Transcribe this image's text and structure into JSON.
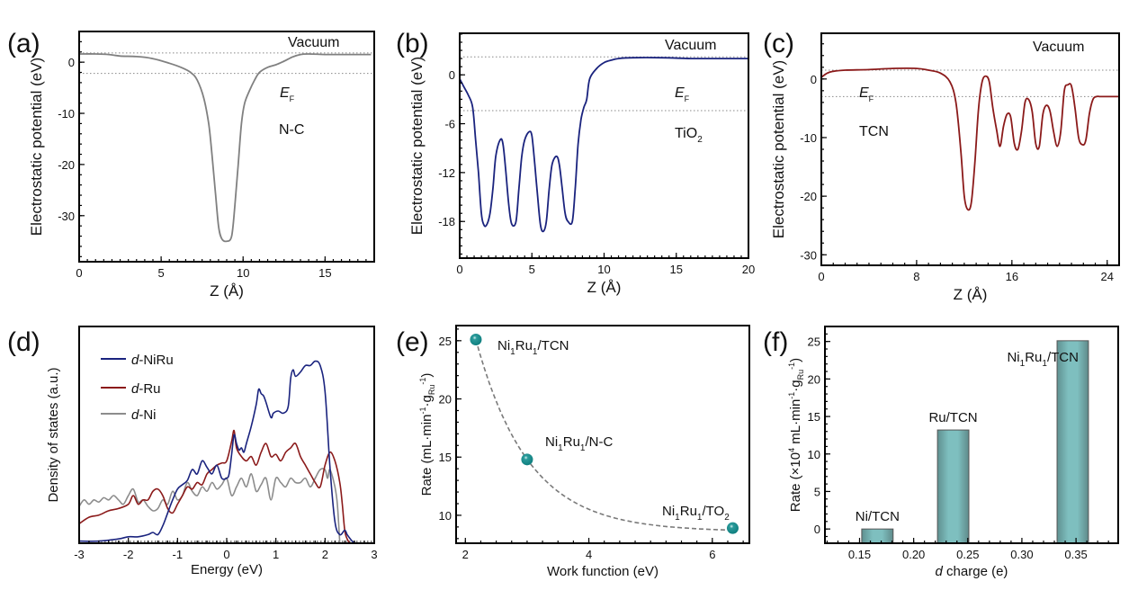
{
  "figure": {
    "panels": [
      "(a)",
      "(b)",
      "(c)",
      "(d)",
      "(e)",
      "(f)"
    ]
  },
  "chart_data": [
    {
      "id": "a",
      "type": "line",
      "panel_label": "(a)",
      "title": "",
      "xlabel": "Z (Å)",
      "ylabel": "Electrostatic potential (eV)",
      "xlim": [
        0,
        18
      ],
      "ylim": [
        -39,
        6
      ],
      "xticks": [
        0,
        5,
        10,
        15
      ],
      "yticks": [
        0,
        -10,
        -20,
        -30
      ],
      "annotations": {
        "vacuum": "Vacuum",
        "ef_main": "E",
        "ef_sub": "F",
        "material": "N-C"
      },
      "reference_lines": {
        "vacuum": 1.8,
        "fermi": -2.2
      },
      "series": [
        {
          "name": "N-C",
          "color": "#808080",
          "x": [
            0,
            1,
            1.8,
            2.5,
            3.5,
            4.5,
            5.5,
            6.2,
            6.8,
            7.2,
            7.6,
            7.9,
            8.1,
            8.3,
            8.5,
            8.7,
            9.0,
            9.3,
            9.5,
            9.7,
            9.9,
            10.1,
            10.4,
            10.7,
            11.0,
            11.5,
            12.0,
            12.5,
            13.0,
            13.5,
            14.0,
            15.0,
            16.0,
            17.0,
            17.8
          ],
          "y": [
            1.6,
            1.6,
            1.5,
            1.2,
            1.1,
            0.7,
            -0.2,
            -1.0,
            -2.0,
            -3.5,
            -7.0,
            -12.0,
            -18.0,
            -25.0,
            -32.0,
            -34.5,
            -35.0,
            -34.0,
            -28.0,
            -20.0,
            -12.0,
            -8.0,
            -5.5,
            -3.5,
            -2.0,
            -1.0,
            -0.5,
            0.2,
            1.0,
            1.5,
            1.6,
            1.5,
            1.5,
            1.5,
            1.5
          ]
        }
      ]
    },
    {
      "id": "b",
      "type": "line",
      "panel_label": "(b)",
      "title": "",
      "xlabel": "Z (Å)",
      "ylabel": "Electrostatic potential (eV)",
      "xlim": [
        0,
        20
      ],
      "ylim": [
        -22.5,
        5.1
      ],
      "xticks": [
        0,
        5,
        10,
        15,
        20
      ],
      "yticks": [
        0,
        -6,
        -12,
        -18
      ],
      "annotations": {
        "vacuum": "Vacuum",
        "ef_main": "E",
        "ef_sub": "F",
        "material_main": "TiO",
        "material_sub": "2"
      },
      "reference_lines": {
        "vacuum": 2.2,
        "fermi": -4.4
      },
      "series": [
        {
          "name": "TiO2",
          "color": "#1a237e",
          "x": [
            0,
            0.3,
            0.6,
            0.9,
            1.1,
            1.3,
            1.5,
            1.7,
            1.9,
            2.1,
            2.3,
            2.5,
            2.8,
            3.0,
            3.2,
            3.4,
            3.6,
            3.9,
            4.1,
            4.3,
            4.5,
            4.8,
            5.0,
            5.2,
            5.4,
            5.6,
            5.8,
            6.0,
            6.2,
            6.4,
            6.7,
            6.9,
            7.1,
            7.3,
            7.5,
            7.8,
            8.0,
            8.2,
            8.4,
            8.6,
            8.8,
            9.0,
            9.5,
            10.0,
            10.5,
            11.0,
            12.0,
            14.0,
            16.0,
            18.0,
            20.0
          ],
          "y": [
            -0.5,
            -1.5,
            -2.5,
            -4.0,
            -8.0,
            -12.0,
            -17.0,
            -18.5,
            -18.3,
            -17.0,
            -14.0,
            -10.0,
            -8.0,
            -8.5,
            -12.0,
            -16.0,
            -18.3,
            -18.0,
            -14.0,
            -10.0,
            -8.0,
            -7.0,
            -7.5,
            -11.0,
            -15.0,
            -18.5,
            -19.2,
            -18.0,
            -14.0,
            -11.0,
            -10.0,
            -11.0,
            -14.0,
            -17.0,
            -18.0,
            -18.0,
            -14.0,
            -8.5,
            -5.5,
            -4.0,
            -3.0,
            -0.5,
            0.8,
            1.5,
            1.8,
            2.0,
            2.1,
            2.1,
            2.0,
            2.0,
            2.0
          ]
        }
      ]
    },
    {
      "id": "c",
      "type": "line",
      "panel_label": "(c)",
      "title": "",
      "xlabel": "Z (Å)",
      "ylabel": "Electrostatic potential (eV)",
      "xlim": [
        0,
        25
      ],
      "ylim": [
        -31.8,
        7.8
      ],
      "xticks": [
        0,
        8,
        16,
        24
      ],
      "yticks": [
        0,
        -10,
        -20,
        -30
      ],
      "annotations": {
        "vacuum": "Vacuum",
        "ef_main": "E",
        "ef_sub": "F",
        "material": "TCN"
      },
      "reference_lines": {
        "vacuum": 1.5,
        "fermi": -3.0
      },
      "series": [
        {
          "name": "TCN",
          "color": "#8b1a1a",
          "x": [
            0,
            0.5,
            1.0,
            2.0,
            4.0,
            6.0,
            8.0,
            9.0,
            10.0,
            10.8,
            11.3,
            11.7,
            12.0,
            12.3,
            12.6,
            12.9,
            13.2,
            13.5,
            13.8,
            14.1,
            14.4,
            14.7,
            15.0,
            15.3,
            15.6,
            15.9,
            16.2,
            16.5,
            16.8,
            17.1,
            17.4,
            17.7,
            18.0,
            18.3,
            18.6,
            18.9,
            19.2,
            19.5,
            19.8,
            20.1,
            20.4,
            20.7,
            21.0,
            21.3,
            21.6,
            21.9,
            22.2,
            22.5,
            22.8,
            23.1,
            23.4,
            23.7,
            24.0,
            24.3,
            24.6,
            25.0
          ],
          "y": [
            0.3,
            1.0,
            1.3,
            1.5,
            1.6,
            1.8,
            1.8,
            1.5,
            1.0,
            -0.5,
            -4.0,
            -12.0,
            -20.0,
            -22.3,
            -21.0,
            -14.0,
            -5.0,
            -0.5,
            0.5,
            -0.5,
            -5.0,
            -8.5,
            -11.5,
            -8.0,
            -6.0,
            -6.5,
            -11.0,
            -12.0,
            -9.0,
            -4.0,
            -3.5,
            -5.5,
            -11.0,
            -11.5,
            -6.0,
            -4.5,
            -5.5,
            -9.0,
            -11.5,
            -9.0,
            -2.0,
            -1.0,
            -1.2,
            -5.0,
            -10.0,
            -11.2,
            -10.5,
            -6.0,
            -3.5,
            -3.0,
            -3.0,
            -3.0,
            -3.0,
            -3.0,
            -3.0,
            -3.0
          ]
        }
      ]
    },
    {
      "id": "d",
      "type": "line",
      "panel_label": "(d)",
      "title": "",
      "xlabel": "Energy (eV)",
      "ylabel": "Density of states (a.u.)",
      "xlim": [
        -3,
        3
      ],
      "ylim": [
        0,
        1
      ],
      "xticks": [
        -3,
        -2,
        -1,
        0,
        1,
        2,
        3
      ],
      "yticks": [],
      "legend": {
        "position": "top-left"
      },
      "series": [
        {
          "name": "d-NiRu",
          "legend_italic": "d",
          "legend_rest": "-NiRu",
          "color": "#1a237e",
          "x": [
            -3.0,
            -2.6,
            -2.2,
            -2.0,
            -1.8,
            -1.6,
            -1.5,
            -1.4,
            -1.3,
            -1.2,
            -1.1,
            -1.0,
            -0.9,
            -0.8,
            -0.7,
            -0.6,
            -0.5,
            -0.4,
            -0.3,
            -0.2,
            -0.1,
            0.0,
            0.05,
            0.1,
            0.15,
            0.2,
            0.25,
            0.3,
            0.35,
            0.4,
            0.5,
            0.6,
            0.65,
            0.7,
            0.75,
            0.8,
            0.9,
            0.95,
            1.05,
            1.15,
            1.25,
            1.3,
            1.35,
            1.4,
            1.5,
            1.6,
            1.7,
            1.8,
            1.9,
            2.0,
            2.1,
            2.2,
            2.3,
            2.4,
            2.45,
            2.55,
            2.6
          ],
          "y": [
            0.01,
            0.01,
            0.02,
            0.03,
            0.03,
            0.04,
            0.05,
            0.04,
            0.08,
            0.14,
            0.2,
            0.25,
            0.27,
            0.29,
            0.34,
            0.32,
            0.38,
            0.35,
            0.32,
            0.36,
            0.3,
            0.3,
            0.32,
            0.41,
            0.5,
            0.46,
            0.43,
            0.44,
            0.42,
            0.46,
            0.54,
            0.64,
            0.71,
            0.69,
            0.68,
            0.65,
            0.58,
            0.6,
            0.61,
            0.6,
            0.63,
            0.76,
            0.8,
            0.77,
            0.79,
            0.82,
            0.82,
            0.84,
            0.82,
            0.7,
            0.35,
            0.1,
            0.04,
            0.06,
            0.04,
            0.01,
            0.0
          ]
        },
        {
          "name": "d-Ru",
          "legend_italic": "d",
          "legend_rest": "-Ru",
          "color": "#8b1a1a",
          "x": [
            -3.0,
            -2.8,
            -2.6,
            -2.4,
            -2.2,
            -2.0,
            -1.9,
            -1.8,
            -1.7,
            -1.6,
            -1.5,
            -1.4,
            -1.3,
            -1.2,
            -1.1,
            -1.0,
            -0.9,
            -0.8,
            -0.7,
            -0.6,
            -0.5,
            -0.4,
            -0.3,
            -0.2,
            -0.1,
            0.0,
            0.1,
            0.15,
            0.2,
            0.3,
            0.4,
            0.5,
            0.6,
            0.7,
            0.8,
            0.9,
            1.0,
            1.1,
            1.2,
            1.3,
            1.4,
            1.5,
            1.6,
            1.7,
            1.8,
            1.9,
            2.0,
            2.1,
            2.2,
            2.3,
            2.35,
            2.4,
            2.45,
            2.5
          ],
          "y": [
            0.09,
            0.12,
            0.13,
            0.15,
            0.16,
            0.18,
            0.22,
            0.18,
            0.2,
            0.2,
            0.24,
            0.25,
            0.22,
            0.16,
            0.14,
            0.18,
            0.22,
            0.26,
            0.25,
            0.28,
            0.27,
            0.32,
            0.34,
            0.36,
            0.37,
            0.38,
            0.47,
            0.52,
            0.44,
            0.4,
            0.38,
            0.4,
            0.36,
            0.42,
            0.46,
            0.4,
            0.41,
            0.38,
            0.42,
            0.44,
            0.46,
            0.4,
            0.36,
            0.32,
            0.28,
            0.26,
            0.36,
            0.42,
            0.38,
            0.28,
            0.18,
            0.06,
            0.02,
            0.0
          ]
        },
        {
          "name": "d-Ni",
          "legend_italic": "d",
          "legend_rest": "-Ni",
          "color": "#8c8c8c",
          "x": [
            -3.0,
            -2.9,
            -2.8,
            -2.7,
            -2.6,
            -2.5,
            -2.4,
            -2.3,
            -2.2,
            -2.1,
            -2.0,
            -1.9,
            -1.8,
            -1.7,
            -1.6,
            -1.5,
            -1.4,
            -1.3,
            -1.2,
            -1.1,
            -1.0,
            -0.9,
            -0.8,
            -0.7,
            -0.6,
            -0.5,
            -0.4,
            -0.3,
            -0.2,
            -0.1,
            0.0,
            0.1,
            0.2,
            0.3,
            0.4,
            0.5,
            0.6,
            0.7,
            0.8,
            0.9,
            1.0,
            1.1,
            1.2,
            1.3,
            1.4,
            1.5,
            1.6,
            1.7,
            1.8,
            1.9,
            2.0,
            2.05,
            2.1,
            2.2,
            2.25,
            2.3
          ],
          "y": [
            0.17,
            0.2,
            0.18,
            0.2,
            0.19,
            0.21,
            0.2,
            0.22,
            0.2,
            0.18,
            0.22,
            0.25,
            0.19,
            0.2,
            0.17,
            0.15,
            0.16,
            0.2,
            0.18,
            0.24,
            0.2,
            0.22,
            0.28,
            0.24,
            0.22,
            0.26,
            0.24,
            0.28,
            0.25,
            0.27,
            0.3,
            0.22,
            0.26,
            0.3,
            0.26,
            0.32,
            0.24,
            0.27,
            0.3,
            0.2,
            0.3,
            0.28,
            0.26,
            0.3,
            0.28,
            0.28,
            0.3,
            0.26,
            0.3,
            0.34,
            0.34,
            0.3,
            0.34,
            0.26,
            0.18,
            0.0
          ]
        }
      ]
    },
    {
      "id": "e",
      "type": "scatter",
      "panel_label": "(e)",
      "title": "",
      "xlabel": "Work function (eV)",
      "ylabel": "Rate (mL·min⁻¹·g_Ru⁻¹)",
      "ylabel_parts": {
        "pre": "Rate (mL·min",
        "sup1": "-1",
        "mid": "·g",
        "sub": "Ru",
        "sup2": "-1",
        "post": ")"
      },
      "xlim": [
        1.85,
        6.6
      ],
      "ylim": [
        7.6,
        26.3
      ],
      "xticks": [
        2,
        4,
        6
      ],
      "yticks": [
        10,
        15,
        20,
        25
      ],
      "marker_color": "#0f7f7f",
      "fit_color": "#7a7a7a",
      "points": [
        {
          "x": 2.17,
          "y": 25.1,
          "label_parts": [
            "Ni",
            "1",
            "Ru",
            "1",
            "/TCN"
          ]
        },
        {
          "x": 3.0,
          "y": 14.8,
          "label_parts": [
            "Ni",
            "1",
            "Ru",
            "1",
            "/N-C"
          ]
        },
        {
          "x": 6.33,
          "y": 8.9,
          "label_parts": [
            "Ni",
            "1",
            "Ru",
            "1",
            "/TO",
            "2"
          ]
        }
      ],
      "fit_curve": {
        "type": "exponential-decay",
        "y0": 8.6,
        "A": 16.5,
        "t": 0.85,
        "x0": 2.17,
        "x_range": [
          2.17,
          6.33
        ]
      }
    },
    {
      "id": "f",
      "type": "bar",
      "panel_label": "(f)",
      "title": "",
      "xlabel_italic": "d",
      "xlabel_rest": " charge (e)",
      "ylabel": "Rate (×10⁴ mL·min⁻¹·g_Ru⁻¹)",
      "ylabel_parts": {
        "pre": "Rate (×10",
        "sup0": "4",
        "mid0": " mL·min",
        "sup1": "-1",
        "mid": "·g",
        "sub": "Ru",
        "sup2": "-1",
        "post": ")"
      },
      "xlim": [
        0.118,
        0.389
      ],
      "ylim": [
        -1.9,
        27
      ],
      "xticks": [
        "0.15",
        "0.20",
        "0.25",
        "0.30",
        "0.35"
      ],
      "yticks": [
        0,
        5,
        10,
        15,
        20,
        25
      ],
      "bar_color": "#7ebfbf",
      "bar_width": 0.029,
      "categories": [
        "Ni/TCN",
        "Ru/TCN",
        "Ni1Ru1/TCN"
      ],
      "x": [
        0.1665,
        0.2365,
        0.347
      ],
      "values": [
        0.0,
        13.2,
        25.1
      ],
      "bar_labels": [
        {
          "parts": [
            "Ni/TCN"
          ]
        },
        {
          "parts": [
            "Ru/TCN"
          ]
        },
        {
          "parts": [
            "Ni",
            "1",
            "Ru",
            "1",
            "/TCN"
          ]
        }
      ]
    }
  ]
}
